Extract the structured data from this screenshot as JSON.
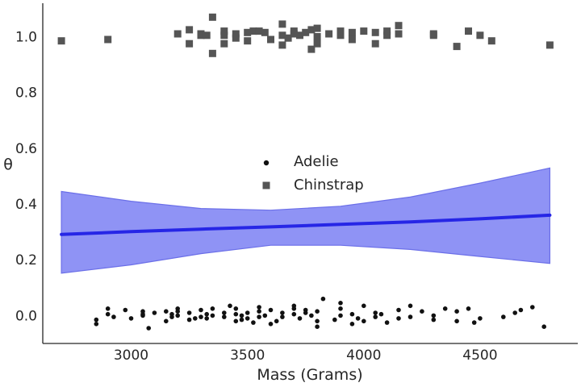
{
  "chart_data": {
    "type": "scatter",
    "title": "",
    "xlabel": "Mass (Grams)",
    "ylabel": "θ",
    "xlim": [
      2620,
      4920
    ],
    "ylim": [
      -0.1,
      1.12
    ],
    "x_ticks": [
      3000,
      3500,
      4000,
      4500
    ],
    "y_ticks": [
      0.0,
      0.2,
      0.4,
      0.6,
      0.8,
      1.0
    ],
    "y_tick_labels": [
      "0.0",
      "0.2",
      "0.4",
      "0.6",
      "0.8",
      "1.0"
    ],
    "grid": false,
    "legend_position": "center",
    "colors": {
      "adelie": "#111111",
      "chinstrap": "#555555",
      "line": "#2626e6",
      "band": "#8f93f5",
      "band_edge": "#6b6fe8"
    },
    "series": [
      {
        "name": "Adelie",
        "marker": "circle",
        "points": [
          [
            2850,
            -0.03
          ],
          [
            2850,
            -0.015
          ],
          [
            2900,
            0.005
          ],
          [
            2900,
            0.025
          ],
          [
            2925,
            -0.005
          ],
          [
            2975,
            0.02
          ],
          [
            3000,
            -0.01
          ],
          [
            3050,
            0.015
          ],
          [
            3050,
            0.0
          ],
          [
            3050,
            0.005
          ],
          [
            3075,
            -0.045
          ],
          [
            3100,
            0.01
          ],
          [
            3150,
            -0.02
          ],
          [
            3150,
            0.015
          ],
          [
            3175,
            -0.005
          ],
          [
            3175,
            0.005
          ],
          [
            3200,
            0.025
          ],
          [
            3200,
            0.0
          ],
          [
            3200,
            0.015
          ],
          [
            3250,
            -0.015
          ],
          [
            3250,
            0.01
          ],
          [
            3275,
            -0.01
          ],
          [
            3300,
            0.02
          ],
          [
            3300,
            -0.005
          ],
          [
            3325,
            0.005
          ],
          [
            3325,
            -0.01
          ],
          [
            3350,
            0.0
          ],
          [
            3350,
            0.025
          ],
          [
            3400,
            -0.005
          ],
          [
            3400,
            0.01
          ],
          [
            3425,
            0.035
          ],
          [
            3450,
            -0.02
          ],
          [
            3450,
            0.005
          ],
          [
            3450,
            0.025
          ],
          [
            3475,
            0.0
          ],
          [
            3475,
            -0.015
          ],
          [
            3500,
            -0.01
          ],
          [
            3500,
            0.01
          ],
          [
            3525,
            -0.025
          ],
          [
            3550,
            0.03
          ],
          [
            3550,
            -0.005
          ],
          [
            3550,
            0.015
          ],
          [
            3575,
            0.0
          ],
          [
            3600,
            -0.03
          ],
          [
            3600,
            0.02
          ],
          [
            3625,
            -0.02
          ],
          [
            3650,
            0.01
          ],
          [
            3650,
            -0.005
          ],
          [
            3700,
            0.035
          ],
          [
            3700,
            0.005
          ],
          [
            3700,
            0.025
          ],
          [
            3725,
            -0.01
          ],
          [
            3750,
            0.02
          ],
          [
            3750,
            0.01
          ],
          [
            3775,
            0.0
          ],
          [
            3800,
            -0.04
          ],
          [
            3800,
            -0.02
          ],
          [
            3800,
            0.015
          ],
          [
            3825,
            0.06
          ],
          [
            3875,
            -0.015
          ],
          [
            3900,
            0.045
          ],
          [
            3900,
            0.0
          ],
          [
            3900,
            0.025
          ],
          [
            3950,
            -0.03
          ],
          [
            3950,
            0.005
          ],
          [
            3975,
            -0.01
          ],
          [
            4000,
            0.035
          ],
          [
            4000,
            -0.02
          ],
          [
            4050,
            0.01
          ],
          [
            4050,
            -0.005
          ],
          [
            4075,
            0.005
          ],
          [
            4100,
            -0.025
          ],
          [
            4150,
            0.02
          ],
          [
            4150,
            -0.01
          ],
          [
            4200,
            0.035
          ],
          [
            4200,
            -0.005
          ],
          [
            4250,
            0.015
          ],
          [
            4300,
            0.0
          ],
          [
            4300,
            -0.015
          ],
          [
            4350,
            0.025
          ],
          [
            4400,
            0.015
          ],
          [
            4400,
            -0.02
          ],
          [
            4450,
            0.025
          ],
          [
            4475,
            -0.025
          ],
          [
            4500,
            -0.01
          ],
          [
            4600,
            -0.005
          ],
          [
            4650,
            0.01
          ],
          [
            4675,
            0.02
          ],
          [
            4725,
            0.03
          ],
          [
            4775,
            -0.04
          ]
        ]
      },
      {
        "name": "Chinstrap",
        "marker": "square",
        "points": [
          [
            2700,
            0.985
          ],
          [
            2900,
            0.99
          ],
          [
            3200,
            1.01
          ],
          [
            3250,
            0.975
          ],
          [
            3250,
            1.025
          ],
          [
            3300,
            1.005
          ],
          [
            3300,
            1.01
          ],
          [
            3325,
            1.005
          ],
          [
            3350,
            1.07
          ],
          [
            3350,
            0.94
          ],
          [
            3400,
            0.975
          ],
          [
            3400,
            1.02
          ],
          [
            3400,
            1.005
          ],
          [
            3450,
            0.995
          ],
          [
            3450,
            1.01
          ],
          [
            3500,
            1.015
          ],
          [
            3500,
            0.985
          ],
          [
            3525,
            1.02
          ],
          [
            3550,
            1.02
          ],
          [
            3575,
            1.015
          ],
          [
            3600,
            0.99
          ],
          [
            3650,
            0.97
          ],
          [
            3650,
            1.005
          ],
          [
            3650,
            1.045
          ],
          [
            3675,
            0.995
          ],
          [
            3700,
            1.01
          ],
          [
            3700,
            1.02
          ],
          [
            3725,
            1.005
          ],
          [
            3750,
            1.015
          ],
          [
            3775,
            0.955
          ],
          [
            3775,
            1.025
          ],
          [
            3800,
            0.975
          ],
          [
            3800,
            1.0
          ],
          [
            3800,
            1.03
          ],
          [
            3850,
            1.01
          ],
          [
            3900,
            1.005
          ],
          [
            3900,
            1.02
          ],
          [
            3950,
            0.99
          ],
          [
            3950,
            1.015
          ],
          [
            4000,
            1.02
          ],
          [
            4050,
            0.975
          ],
          [
            4050,
            1.015
          ],
          [
            4100,
            1.005
          ],
          [
            4100,
            1.02
          ],
          [
            4150,
            1.01
          ],
          [
            4150,
            1.04
          ],
          [
            4300,
            1.01
          ],
          [
            4300,
            1.005
          ],
          [
            4400,
            0.965
          ],
          [
            4450,
            1.02
          ],
          [
            4500,
            1.005
          ],
          [
            4550,
            0.985
          ],
          [
            4800,
            0.97
          ]
        ]
      }
    ],
    "mean_line": {
      "x": [
        2700,
        3000,
        3300,
        3600,
        3900,
        4200,
        4500,
        4800
      ],
      "y": [
        0.291,
        0.301,
        0.31,
        0.318,
        0.327,
        0.336,
        0.347,
        0.36
      ]
    },
    "hdi_band": {
      "x": [
        2700,
        3000,
        3300,
        3600,
        3900,
        4200,
        4500,
        4800
      ],
      "lower": [
        0.152,
        0.182,
        0.222,
        0.252,
        0.252,
        0.237,
        0.212,
        0.187
      ],
      "upper": [
        0.445,
        0.41,
        0.384,
        0.378,
        0.392,
        0.425,
        0.475,
        0.529
      ]
    }
  }
}
